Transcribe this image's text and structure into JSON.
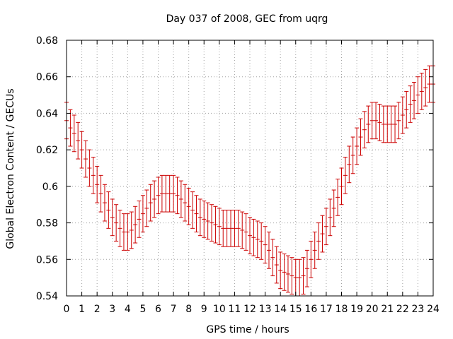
{
  "chart_data": {
    "type": "scatter",
    "title": "Day 037 of 2008, GEC from uqrg",
    "xlabel": "GPS time / hours",
    "ylabel": "Global Electron Content / GECUs",
    "xlim": [
      0,
      24
    ],
    "ylim": [
      0.54,
      0.68
    ],
    "xticks": [
      "0",
      "1",
      "2",
      "3",
      "4",
      "5",
      "6",
      "7",
      "8",
      "9",
      "10",
      "11",
      "12",
      "13",
      "14",
      "15",
      "16",
      "17",
      "18",
      "19",
      "20",
      "21",
      "22",
      "23",
      "24"
    ],
    "yticks": [
      "0.54",
      "0.56",
      "0.58",
      "0.6",
      "0.62",
      "0.64",
      "0.66",
      "0.68"
    ],
    "grid": true,
    "series": [
      {
        "name": "GEC",
        "color": "#cc0000",
        "error": 0.01,
        "x": [
          0,
          0.25,
          0.5,
          0.75,
          1,
          1.25,
          1.5,
          1.75,
          2,
          2.25,
          2.5,
          2.75,
          3,
          3.25,
          3.5,
          3.75,
          4,
          4.25,
          4.5,
          4.75,
          5,
          5.25,
          5.5,
          5.75,
          6,
          6.25,
          6.5,
          6.75,
          7,
          7.25,
          7.5,
          7.75,
          8,
          8.25,
          8.5,
          8.75,
          9,
          9.25,
          9.5,
          9.75,
          10,
          10.25,
          10.5,
          10.75,
          11,
          11.25,
          11.5,
          11.75,
          12,
          12.25,
          12.5,
          12.75,
          13,
          13.25,
          13.5,
          13.75,
          14,
          14.25,
          14.5,
          14.75,
          15,
          15.25,
          15.5,
          15.75,
          16,
          16.25,
          16.5,
          16.75,
          17,
          17.25,
          17.5,
          17.75,
          18,
          18.25,
          18.5,
          18.75,
          19,
          19.25,
          19.5,
          19.75,
          20,
          20.25,
          20.5,
          20.75,
          21,
          21.25,
          21.5,
          21.75,
          22,
          22.25,
          22.5,
          22.75,
          23,
          23.25,
          23.5,
          23.75,
          24
        ],
        "y": [
          0.636,
          0.632,
          0.629,
          0.625,
          0.62,
          0.615,
          0.61,
          0.606,
          0.601,
          0.596,
          0.591,
          0.587,
          0.583,
          0.58,
          0.577,
          0.575,
          0.575,
          0.576,
          0.579,
          0.582,
          0.585,
          0.588,
          0.591,
          0.593,
          0.595,
          0.596,
          0.596,
          0.596,
          0.596,
          0.595,
          0.593,
          0.591,
          0.589,
          0.587,
          0.585,
          0.583,
          0.582,
          0.581,
          0.58,
          0.579,
          0.578,
          0.577,
          0.577,
          0.577,
          0.577,
          0.577,
          0.576,
          0.575,
          0.573,
          0.572,
          0.571,
          0.57,
          0.568,
          0.565,
          0.561,
          0.557,
          0.554,
          0.553,
          0.552,
          0.551,
          0.55,
          0.55,
          0.551,
          0.555,
          0.56,
          0.565,
          0.57,
          0.574,
          0.578,
          0.583,
          0.588,
          0.594,
          0.6,
          0.606,
          0.612,
          0.617,
          0.622,
          0.627,
          0.631,
          0.634,
          0.636,
          0.636,
          0.635,
          0.634,
          0.634,
          0.634,
          0.634,
          0.636,
          0.639,
          0.642,
          0.645,
          0.647,
          0.65,
          0.652,
          0.654,
          0.656,
          0.656
        ]
      }
    ]
  }
}
